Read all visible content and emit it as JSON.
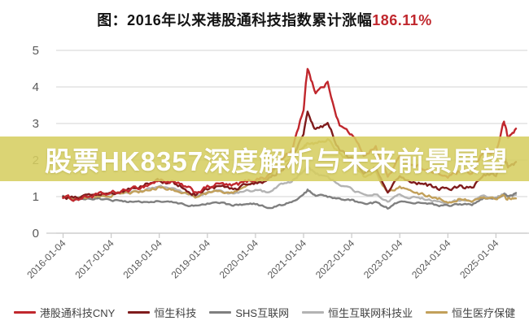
{
  "title": {
    "text": "图：2016年以来港股通科技指数累计涨幅",
    "highlight": "186.11%",
    "highlight_color": "#c0272d",
    "text_color": "#141414"
  },
  "watermark": {
    "text": "股票HK8357深度解析与未来前景展望",
    "bg_color": "rgba(214,206,95,0.87)",
    "text_color": "#ffffff"
  },
  "chart_data": {
    "type": "line",
    "x": [
      "2016-01",
      "2016-04",
      "2016-07",
      "2016-10",
      "2017-01",
      "2017-04",
      "2017-07",
      "2017-10",
      "2018-01",
      "2018-04",
      "2018-07",
      "2018-10",
      "2019-01",
      "2019-04",
      "2019-07",
      "2019-10",
      "2020-01",
      "2020-04",
      "2020-07",
      "2020-10",
      "2021-01",
      "2021-02",
      "2021-04",
      "2021-07",
      "2021-10",
      "2022-01",
      "2022-04",
      "2022-07",
      "2022-10",
      "2023-01",
      "2023-04",
      "2023-07",
      "2023-10",
      "2024-01",
      "2024-04",
      "2024-07",
      "2024-10",
      "2025-01",
      "2025-03",
      "2025-04",
      "2025-06"
    ],
    "series": [
      {
        "name": "港股通科技CNY",
        "color": "#c0272d",
        "values": [
          1.0,
          0.93,
          1.0,
          1.05,
          1.08,
          1.15,
          1.22,
          1.32,
          1.45,
          1.4,
          1.28,
          1.12,
          1.25,
          1.35,
          1.28,
          1.38,
          1.48,
          1.55,
          1.95,
          2.25,
          3.4,
          4.53,
          3.85,
          4.1,
          2.95,
          2.7,
          2.15,
          2.35,
          1.55,
          2.05,
          1.9,
          1.78,
          1.62,
          1.55,
          1.68,
          1.62,
          2.25,
          2.2,
          3.05,
          2.6,
          2.86
        ]
      },
      {
        "name": "恒生科技",
        "color": "#7f1b1c",
        "values": [
          1.0,
          0.95,
          1.02,
          1.06,
          1.1,
          1.16,
          1.24,
          1.34,
          1.44,
          1.38,
          1.24,
          1.08,
          1.2,
          1.28,
          1.2,
          1.3,
          1.38,
          1.42,
          1.72,
          1.95,
          2.75,
          3.3,
          2.85,
          3.0,
          2.25,
          2.05,
          1.65,
          1.8,
          1.18,
          1.55,
          1.42,
          1.35,
          1.25,
          1.18,
          1.28,
          1.22,
          1.62,
          1.58,
          2.05,
          1.8,
          1.95
        ]
      },
      {
        "name": "SHS互联网",
        "color": "#7f7f7f",
        "values": [
          1.0,
          0.92,
          0.96,
          0.94,
          0.9,
          0.87,
          0.85,
          0.87,
          0.88,
          0.84,
          0.78,
          0.74,
          0.8,
          0.84,
          0.76,
          0.79,
          0.8,
          0.7,
          0.76,
          0.84,
          1.05,
          1.18,
          1.05,
          1.0,
          0.92,
          0.9,
          0.78,
          0.84,
          0.68,
          0.88,
          0.84,
          0.8,
          0.77,
          0.74,
          0.8,
          0.77,
          0.95,
          0.92,
          1.05,
          1.0,
          1.1
        ]
      },
      {
        "name": "恒生互联网科技业",
        "color": "#b3b3b3",
        "values": [
          1.0,
          0.95,
          1.0,
          1.02,
          1.05,
          1.1,
          1.14,
          1.2,
          1.28,
          1.22,
          1.12,
          1.02,
          1.1,
          1.16,
          1.08,
          1.14,
          1.18,
          1.12,
          1.32,
          1.42,
          1.7,
          1.85,
          1.62,
          1.52,
          1.32,
          1.22,
          1.02,
          1.1,
          0.84,
          1.05,
          0.98,
          0.94,
          0.88,
          0.84,
          0.9,
          0.86,
          1.02,
          0.98,
          1.08,
          1.02,
          1.05
        ]
      },
      {
        "name": "恒生医疗保健",
        "color": "#c2a05a",
        "values": [
          1.0,
          0.96,
          1.0,
          1.02,
          1.05,
          1.08,
          1.12,
          1.16,
          1.25,
          1.2,
          1.1,
          1.0,
          1.1,
          1.16,
          1.12,
          1.22,
          1.38,
          1.5,
          1.92,
          2.05,
          2.35,
          2.5,
          2.42,
          2.58,
          2.15,
          1.95,
          1.55,
          1.68,
          1.1,
          1.28,
          1.15,
          1.05,
          0.96,
          0.88,
          0.94,
          0.86,
          0.98,
          0.92,
          1.0,
          0.94,
          0.95
        ]
      }
    ],
    "xticklabels": [
      "2016-01-04",
      "2017-01-04",
      "2018-01-04",
      "2019-01-04",
      "2020-01-04",
      "2021-01-04",
      "2022-01-04",
      "2023-01-04",
      "2024-01-04",
      "2025-01-04"
    ],
    "yticks": [
      0,
      1,
      2,
      3,
      4,
      5
    ],
    "ylim": [
      0,
      5
    ],
    "grid": "horizontal",
    "legend_position": "bottom",
    "grid_color": "#dcdcdc",
    "axis_color": "#c9c9c9",
    "tick_label_color": "#595959"
  }
}
